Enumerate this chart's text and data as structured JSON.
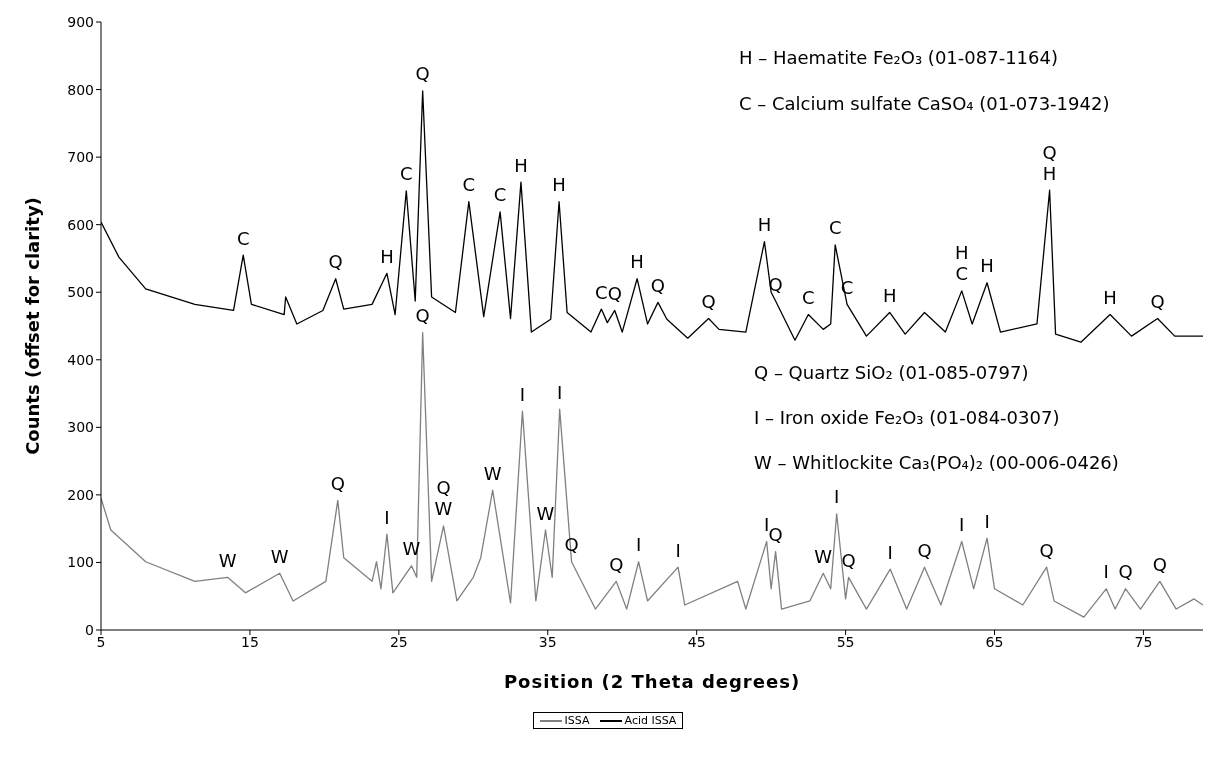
{
  "chart_data": {
    "type": "line",
    "xlabel": "Position (2 Theta degrees)",
    "ylabel": "Counts (offset for clarity)",
    "xlim": [
      5,
      79
    ],
    "xticks": [
      5,
      15,
      25,
      35,
      45,
      55,
      65,
      75
    ],
    "ylim": [
      0,
      900
    ],
    "yticks": [
      0,
      100,
      200,
      300,
      400,
      500,
      600,
      700,
      800,
      900
    ],
    "grid": false,
    "legend": "bottom",
    "marker": "none",
    "line_style": "solid",
    "series": [
      {
        "name": "ISSA",
        "color": "#808080",
        "x": [
          5,
          5.66,
          8,
          11.3,
          13.5,
          14.7,
          17,
          17.9,
          20.1,
          20.9,
          21.3,
          23.2,
          23.5,
          23.8,
          24.2,
          24.6,
          25.85,
          26.2,
          26.6,
          27.2,
          28,
          28.9,
          30,
          30.5,
          31.3,
          32.5,
          33.3,
          34.2,
          34.85,
          35.3,
          35.8,
          36.6,
          38.2,
          39.6,
          40.3,
          41.1,
          41.7,
          43.75,
          44.2,
          47.75,
          48.3,
          49.7,
          50,
          50.3,
          50.7,
          52.6,
          53.5,
          54,
          54.4,
          55,
          55.2,
          56.4,
          58,
          59.1,
          60.3,
          61.4,
          62.8,
          63.6,
          64.5,
          65,
          66.9,
          68.5,
          69,
          71,
          72.5,
          73.1,
          73.8,
          74.8,
          76.1,
          77.2,
          78.4,
          79
        ],
        "values": [
          195,
          148,
          101,
          72,
          78,
          55,
          84,
          43,
          72,
          192,
          107,
          72,
          101,
          61,
          142,
          55,
          95,
          78,
          440,
          72,
          154,
          43,
          78,
          107,
          207,
          40,
          324,
          43,
          148,
          78,
          327,
          101,
          31,
          72,
          31,
          101,
          43,
          93,
          37,
          72,
          31,
          131,
          61,
          116,
          31,
          43,
          84,
          61,
          172,
          46,
          78,
          31,
          90,
          31,
          93,
          37,
          131,
          61,
          136,
          61,
          37,
          93,
          43,
          19,
          61,
          31,
          61,
          31,
          72,
          31,
          46,
          37
        ]
      },
      {
        "name": "Acid ISSA",
        "color": "#000000",
        "x": [
          5,
          6.2,
          8,
          11.3,
          13.9,
          14.55,
          15.1,
          17.3,
          17.4,
          18.15,
          19.9,
          20.76,
          21.3,
          23.2,
          24.2,
          24.75,
          25.5,
          26.1,
          26.6,
          27.2,
          28.8,
          29.7,
          30.7,
          31.8,
          32.5,
          33.2,
          33.9,
          35.2,
          35.76,
          36.3,
          37.9,
          38.6,
          39,
          39.5,
          40,
          41,
          41.7,
          42.4,
          43,
          44.4,
          45.8,
          46.5,
          48.3,
          49.55,
          50,
          50.3,
          51.6,
          52.5,
          53.5,
          54,
          54.3,
          55.1,
          56.4,
          57.96,
          59,
          60.3,
          61.7,
          62.8,
          63.5,
          64.5,
          65.4,
          67.85,
          68.7,
          69.1,
          70.8,
          72.76,
          74.2,
          75.95,
          77.1,
          79
        ],
        "values": [
          604,
          552,
          505,
          482,
          473,
          555,
          482,
          467,
          493,
          453,
          473,
          520,
          475,
          482,
          528,
          467,
          650,
          487,
          798,
          493,
          470,
          634,
          464,
          619,
          461,
          663,
          441,
          460,
          634,
          470,
          441,
          475,
          455,
          473,
          441,
          520,
          453,
          485,
          460,
          432,
          461,
          445,
          441,
          575,
          500,
          487,
          429,
          467,
          445,
          453,
          570,
          482,
          435,
          470,
          438,
          470,
          441,
          502,
          453,
          514,
          441,
          453,
          651,
          438,
          426,
          467,
          435,
          461,
          435,
          435
        ]
      }
    ],
    "annotations": [
      "H – Haematite Fe₂O₃ (01-087-1164)",
      "C – Calcium sulfate CaSO₄ (01-073-1942)",
      "Q – Quartz SiO₂ (01-085-0797)",
      "I – Iron oxide Fe₂O₃ (01-084-0307)",
      "W – Whitlockite Ca₃(PO₄)₂ (00-006-0426)",
      {
        "text": "C",
        "x": 14.55,
        "y": 555
      },
      {
        "text": "Q",
        "x": 20.76,
        "y": 520
      },
      {
        "text": "H",
        "x": 24.2,
        "y": 528
      },
      {
        "text": "C",
        "x": 25.5,
        "y": 650
      },
      {
        "text": "Q",
        "x": 26.6,
        "y": 798
      },
      {
        "text": "C",
        "x": 29.7,
        "y": 634
      },
      {
        "text": "C",
        "x": 31.8,
        "y": 619
      },
      {
        "text": "H",
        "x": 33.2,
        "y": 663
      },
      {
        "text": "H",
        "x": 35.76,
        "y": 634
      },
      {
        "text": "C",
        "x": 38.6,
        "y": 475
      },
      {
        "text": "Q",
        "x": 39.5,
        "y": 473
      },
      {
        "text": "H",
        "x": 41,
        "y": 520
      },
      {
        "text": "Q",
        "x": 42.4,
        "y": 485
      },
      {
        "text": "Q",
        "x": 45.8,
        "y": 461
      },
      {
        "text": "H",
        "x": 49.55,
        "y": 575
      },
      {
        "text": "Q",
        "x": 50.3,
        "y": 487
      },
      {
        "text": "C",
        "x": 52.5,
        "y": 467
      },
      {
        "text": "C",
        "x": 54.3,
        "y": 570
      },
      {
        "text": "C",
        "x": 55.1,
        "y": 482
      },
      {
        "text": "H",
        "x": 57.96,
        "y": 470
      },
      {
        "text": "C",
        "x": 62.8,
        "y": 502
      },
      {
        "text": "H",
        "x": 62.8,
        "y": 502
      },
      {
        "text": "H",
        "x": 64.5,
        "y": 514
      },
      {
        "text": "H",
        "x": 68.7,
        "y": 651
      },
      {
        "text": "Q",
        "x": 68.7,
        "y": 651
      },
      {
        "text": "H",
        "x": 72.76,
        "y": 467
      },
      {
        "text": "Q",
        "x": 75.95,
        "y": 461
      },
      {
        "text": "W",
        "x": 13.5,
        "y": 78
      },
      {
        "text": "W",
        "x": 17,
        "y": 84
      },
      {
        "text": "Q",
        "x": 20.9,
        "y": 192
      },
      {
        "text": "I",
        "x": 24.2,
        "y": 142
      },
      {
        "text": "W",
        "x": 25.85,
        "y": 95
      },
      {
        "text": "Q",
        "x": 26.6,
        "y": 440
      },
      {
        "text": "W",
        "x": 28,
        "y": 154
      },
      {
        "text": "Q",
        "x": 28,
        "y": 154
      },
      {
        "text": "W",
        "x": 31.3,
        "y": 207
      },
      {
        "text": "I",
        "x": 33.3,
        "y": 324
      },
      {
        "text": "W",
        "x": 34.85,
        "y": 148
      },
      {
        "text": "I",
        "x": 35.8,
        "y": 327
      },
      {
        "text": "Q",
        "x": 36.6,
        "y": 101
      },
      {
        "text": "Q",
        "x": 39.6,
        "y": 72
      },
      {
        "text": "I",
        "x": 41.1,
        "y": 101
      },
      {
        "text": "I",
        "x": 43.75,
        "y": 93
      },
      {
        "text": "I",
        "x": 49.7,
        "y": 131
      },
      {
        "text": "Q",
        "x": 50.3,
        "y": 116
      },
      {
        "text": "W",
        "x": 53.5,
        "y": 84
      },
      {
        "text": "I",
        "x": 54.4,
        "y": 172
      },
      {
        "text": "Q",
        "x": 55.2,
        "y": 78
      },
      {
        "text": "I",
        "x": 58,
        "y": 90
      },
      {
        "text": "Q",
        "x": 60.3,
        "y": 93
      },
      {
        "text": "I",
        "x": 62.8,
        "y": 131
      },
      {
        "text": "I",
        "x": 64.5,
        "y": 136
      },
      {
        "text": "Q",
        "x": 68.5,
        "y": 93
      },
      {
        "text": "I",
        "x": 72.5,
        "y": 61
      },
      {
        "text": "Q",
        "x": 73.8,
        "y": 61
      },
      {
        "text": "Q",
        "x": 76.1,
        "y": 72
      }
    ]
  }
}
